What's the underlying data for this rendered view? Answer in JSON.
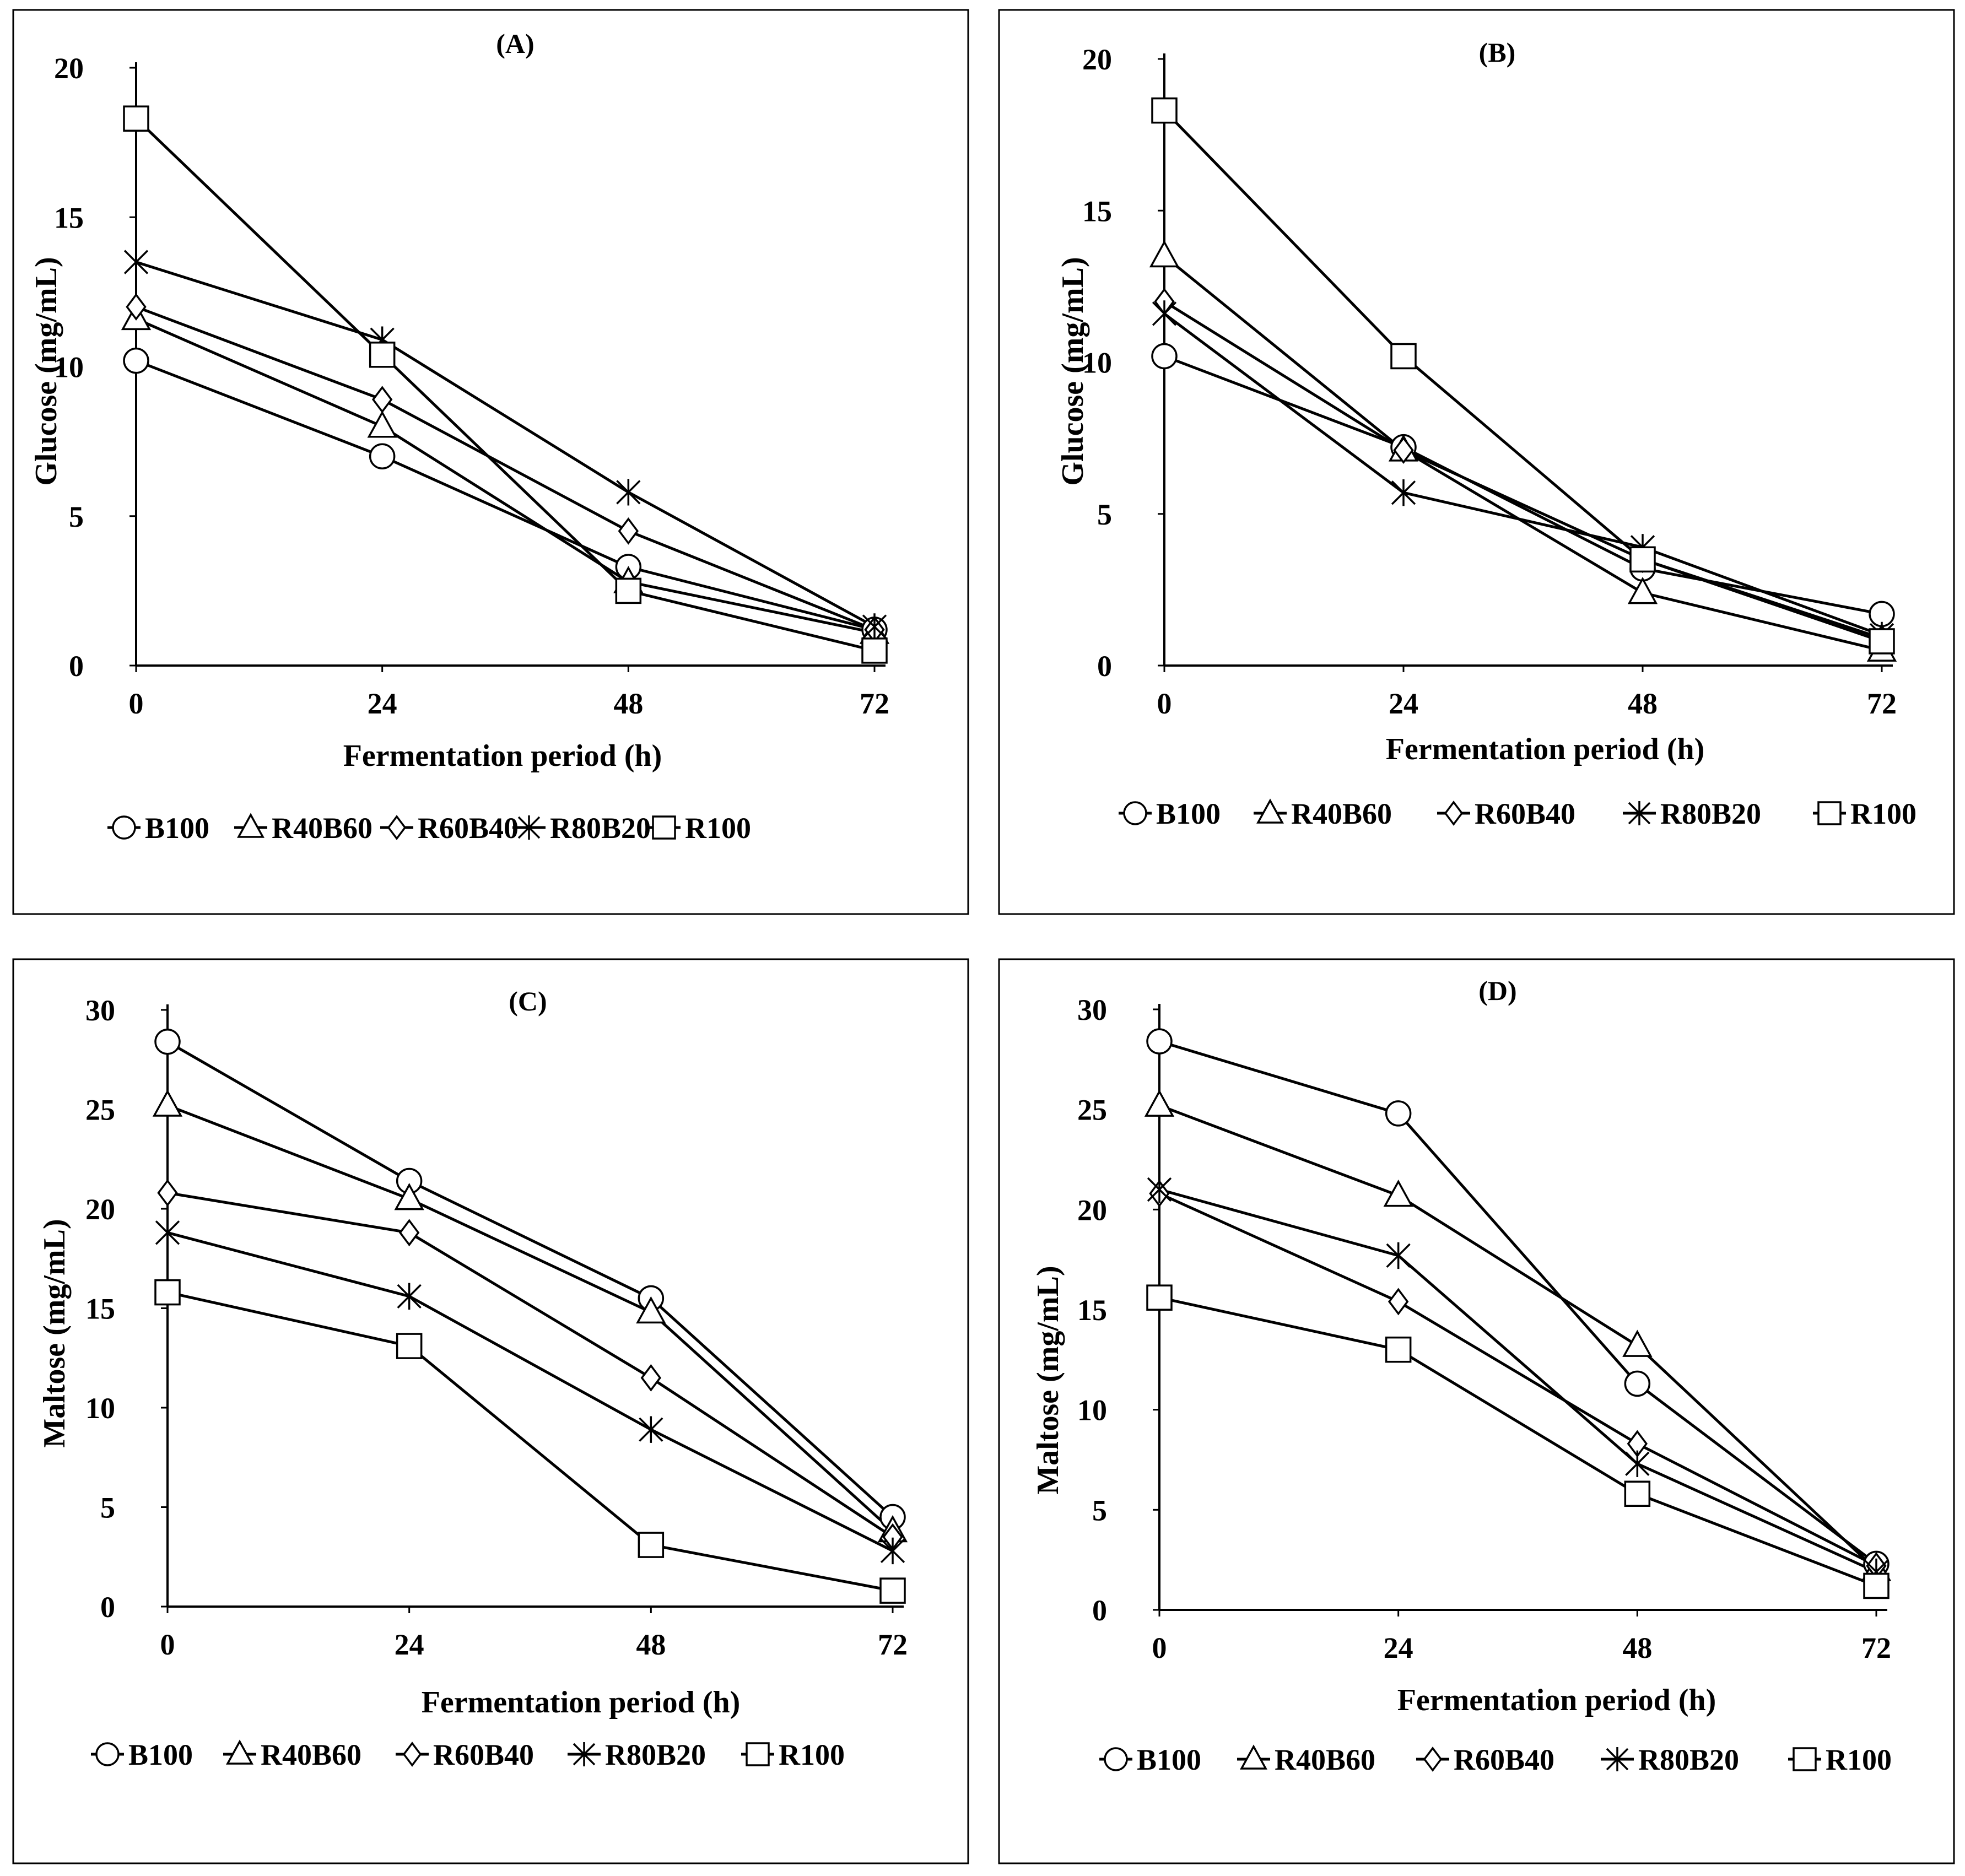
{
  "chart_data": [
    {
      "type": "line",
      "title": "(A)",
      "xlabel": "Fermentation period (h)",
      "ylabel": "Glucose (mg/mL)",
      "x": [
        0,
        24,
        48,
        72
      ],
      "ylim": [
        0,
        20
      ],
      "yticks": [
        0,
        5,
        10,
        15,
        20
      ],
      "legend_position": "bottom",
      "series": [
        {
          "name": "B100",
          "marker": "circle",
          "values": [
            10.2,
            7.0,
            3.3,
            1.2
          ]
        },
        {
          "name": "R40B60",
          "marker": "triangle",
          "values": [
            11.6,
            8.0,
            2.8,
            1.1
          ]
        },
        {
          "name": "R60B40",
          "marker": "diamond",
          "values": [
            12.0,
            8.9,
            4.5,
            1.2
          ]
        },
        {
          "name": "R80B20",
          "marker": "star",
          "values": [
            13.5,
            10.9,
            5.8,
            1.3
          ]
        },
        {
          "name": "R100",
          "marker": "square",
          "values": [
            18.3,
            10.4,
            2.5,
            0.5
          ]
        }
      ]
    },
    {
      "type": "line",
      "title": "(B)",
      "xlabel": "Fermentation period (h)",
      "ylabel": "Glucose (mg/mL)",
      "x": [
        0,
        24,
        48,
        72
      ],
      "ylim": [
        0,
        20
      ],
      "yticks": [
        0,
        5,
        10,
        15,
        20
      ],
      "legend_position": "bottom",
      "series": [
        {
          "name": "B100",
          "marker": "circle",
          "values": [
            10.2,
            7.2,
            3.2,
            1.7
          ]
        },
        {
          "name": "R40B60",
          "marker": "triangle",
          "values": [
            13.5,
            7.1,
            2.4,
            0.5
          ]
        },
        {
          "name": "R60B40",
          "marker": "diamond",
          "values": [
            12.0,
            7.1,
            3.5,
            0.9
          ]
        },
        {
          "name": "R80B20",
          "marker": "star",
          "values": [
            11.6,
            5.7,
            3.9,
            1.0
          ]
        },
        {
          "name": "R100",
          "marker": "square",
          "values": [
            18.3,
            10.2,
            3.5,
            0.8
          ]
        }
      ]
    },
    {
      "type": "line",
      "title": "(C)",
      "xlabel": "Fermentation period (h)",
      "ylabel": "Maltose (mg/mL)",
      "x": [
        0,
        24,
        48,
        72
      ],
      "ylim": [
        0,
        30
      ],
      "yticks": [
        0,
        5,
        10,
        15,
        20,
        25,
        30
      ],
      "legend_position": "bottom",
      "series": [
        {
          "name": "B100",
          "marker": "circle",
          "values": [
            28.4,
            21.4,
            15.5,
            4.5
          ]
        },
        {
          "name": "R40B60",
          "marker": "triangle",
          "values": [
            25.2,
            20.5,
            14.8,
            3.8
          ]
        },
        {
          "name": "R60B40",
          "marker": "diamond",
          "values": [
            20.8,
            18.8,
            11.5,
            3.5
          ]
        },
        {
          "name": "R80B20",
          "marker": "star",
          "values": [
            18.8,
            15.6,
            8.9,
            2.8
          ]
        },
        {
          "name": "R100",
          "marker": "square",
          "values": [
            15.8,
            13.1,
            3.1,
            0.8
          ]
        }
      ]
    },
    {
      "type": "line",
      "title": "(D)",
      "xlabel": "Fermentation period (h)",
      "ylabel": "Maltose (mg/mL)",
      "x": [
        0,
        24,
        48,
        72
      ],
      "ylim": [
        0,
        30
      ],
      "yticks": [
        0,
        5,
        10,
        15,
        20,
        25,
        30
      ],
      "legend_position": "bottom",
      "series": [
        {
          "name": "B100",
          "marker": "circle",
          "values": [
            28.4,
            24.8,
            11.3,
            2.3
          ]
        },
        {
          "name": "R40B60",
          "marker": "triangle",
          "values": [
            25.2,
            20.7,
            13.2,
            2.0
          ]
        },
        {
          "name": "R60B40",
          "marker": "diamond",
          "values": [
            20.8,
            15.4,
            8.3,
            2.2
          ]
        },
        {
          "name": "R80B20",
          "marker": "star",
          "values": [
            21.0,
            17.7,
            7.3,
            1.9
          ]
        },
        {
          "name": "R100",
          "marker": "square",
          "values": [
            15.6,
            13.0,
            5.8,
            1.2
          ]
        }
      ]
    }
  ]
}
